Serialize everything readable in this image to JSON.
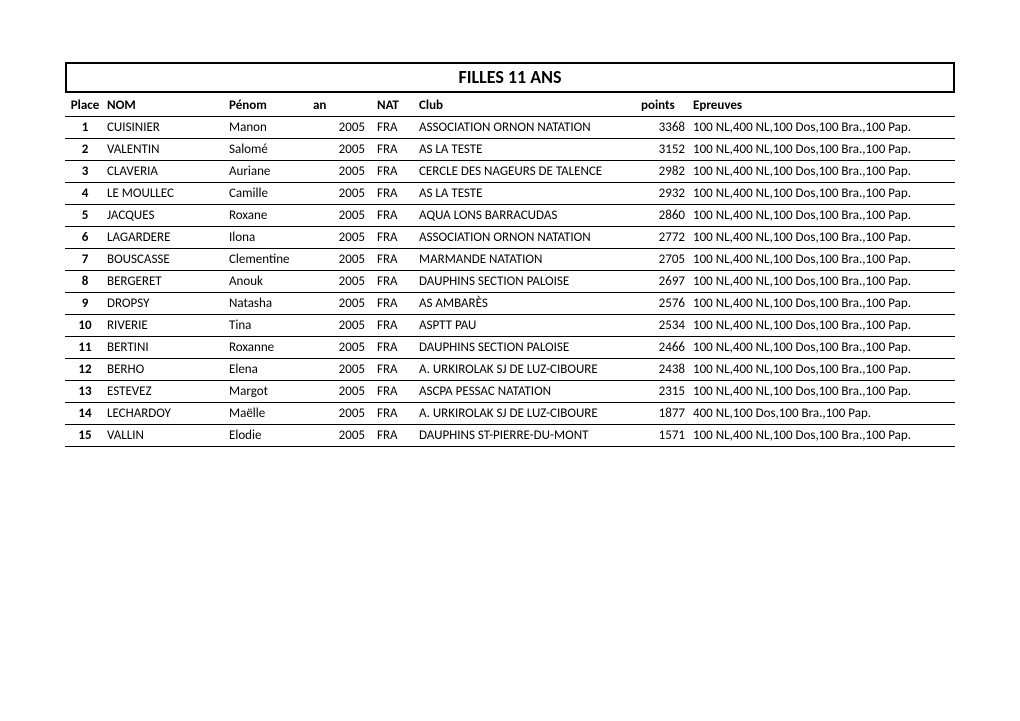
{
  "title": "FILLES 11 ANS",
  "columns": {
    "place": "Place",
    "nom": "NOM",
    "penom": "Pénom",
    "an": "an",
    "nat": "NAT",
    "club": "Club",
    "points": "points",
    "epreuves": "Epreuves"
  },
  "rows": [
    {
      "place": "1",
      "nom": "CUISINIER",
      "penom": "Manon",
      "an": "2005",
      "nat": "FRA",
      "club": "ASSOCIATION ORNON NATATION",
      "points": "3368",
      "epreuves": "100 NL,400 NL,100 Dos,100 Bra.,100 Pap."
    },
    {
      "place": "2",
      "nom": "VALENTIN",
      "penom": "Salomé",
      "an": "2005",
      "nat": "FRA",
      "club": "AS LA TESTE",
      "points": "3152",
      "epreuves": "100 NL,400 NL,100 Dos,100 Bra.,100 Pap."
    },
    {
      "place": "3",
      "nom": "CLAVERIA",
      "penom": "Auriane",
      "an": "2005",
      "nat": "FRA",
      "club": "CERCLE DES NAGEURS DE TALENCE",
      "points": "2982",
      "epreuves": "100 NL,400 NL,100 Dos,100 Bra.,100 Pap."
    },
    {
      "place": "4",
      "nom": "LE MOULLEC",
      "penom": "Camille",
      "an": "2005",
      "nat": "FRA",
      "club": "AS LA TESTE",
      "points": "2932",
      "epreuves": "100 NL,400 NL,100 Dos,100 Bra.,100 Pap."
    },
    {
      "place": "5",
      "nom": "JACQUES",
      "penom": "Roxane",
      "an": "2005",
      "nat": "FRA",
      "club": "AQUA LONS BARRACUDAS",
      "points": "2860",
      "epreuves": "100 NL,400 NL,100 Dos,100 Bra.,100 Pap."
    },
    {
      "place": "6",
      "nom": "LAGARDERE",
      "penom": "Ilona",
      "an": "2005",
      "nat": "FRA",
      "club": "ASSOCIATION ORNON NATATION",
      "points": "2772",
      "epreuves": "100 NL,400 NL,100 Dos,100 Bra.,100 Pap."
    },
    {
      "place": "7",
      "nom": "BOUSCASSE",
      "penom": "Clementine",
      "an": "2005",
      "nat": "FRA",
      "club": "MARMANDE NATATION",
      "points": "2705",
      "epreuves": "100 NL,400 NL,100 Dos,100 Bra.,100 Pap."
    },
    {
      "place": "8",
      "nom": "BERGERET",
      "penom": "Anouk",
      "an": "2005",
      "nat": "FRA",
      "club": " DAUPHINS SECTION PALOISE",
      "points": "2697",
      "epreuves": "100 NL,400 NL,100 Dos,100 Bra.,100 Pap."
    },
    {
      "place": "9",
      "nom": "DROPSY",
      "penom": "Natasha",
      "an": "2005",
      "nat": "FRA",
      "club": "AS AMBARÈS",
      "points": "2576",
      "epreuves": "100 NL,400 NL,100 Dos,100 Bra.,100 Pap."
    },
    {
      "place": "10",
      "nom": "RIVERIE",
      "penom": "Tina",
      "an": "2005",
      "nat": "FRA",
      "club": "ASPTT PAU",
      "points": "2534",
      "epreuves": "100 NL,400 NL,100 Dos,100 Bra.,100 Pap."
    },
    {
      "place": "11",
      "nom": "BERTINI",
      "penom": "Roxanne",
      "an": "2005",
      "nat": "FRA",
      "club": " DAUPHINS SECTION PALOISE",
      "points": "2466",
      "epreuves": "100 NL,400 NL,100 Dos,100 Bra.,100 Pap."
    },
    {
      "place": "12",
      "nom": "BERHO",
      "penom": "Elena",
      "an": "2005",
      "nat": "FRA",
      "club": "A. URKIROLAK SJ DE LUZ-CIBOURE",
      "points": "2438",
      "epreuves": "100 NL,400 NL,100 Dos,100 Bra.,100 Pap."
    },
    {
      "place": "13",
      "nom": "ESTEVEZ",
      "penom": "Margot",
      "an": "2005",
      "nat": "FRA",
      "club": "ASCPA PESSAC NATATION",
      "points": "2315",
      "epreuves": "100 NL,400 NL,100 Dos,100 Bra.,100 Pap."
    },
    {
      "place": "14",
      "nom": "LECHARDOY",
      "penom": "Maëlle",
      "an": "2005",
      "nat": "FRA",
      "club": "A. URKIROLAK SJ DE LUZ-CIBOURE",
      "points": "1877",
      "epreuves": "400 NL,100 Dos,100 Bra.,100 Pap."
    },
    {
      "place": "15",
      "nom": "VALLIN",
      "penom": "Elodie",
      "an": "2005",
      "nat": "FRA",
      "club": "DAUPHINS ST-PIERRE-DU-MONT",
      "points": "1571",
      "epreuves": "100 NL,400 NL,100 Dos,100 Bra.,100 Pap."
    }
  ]
}
